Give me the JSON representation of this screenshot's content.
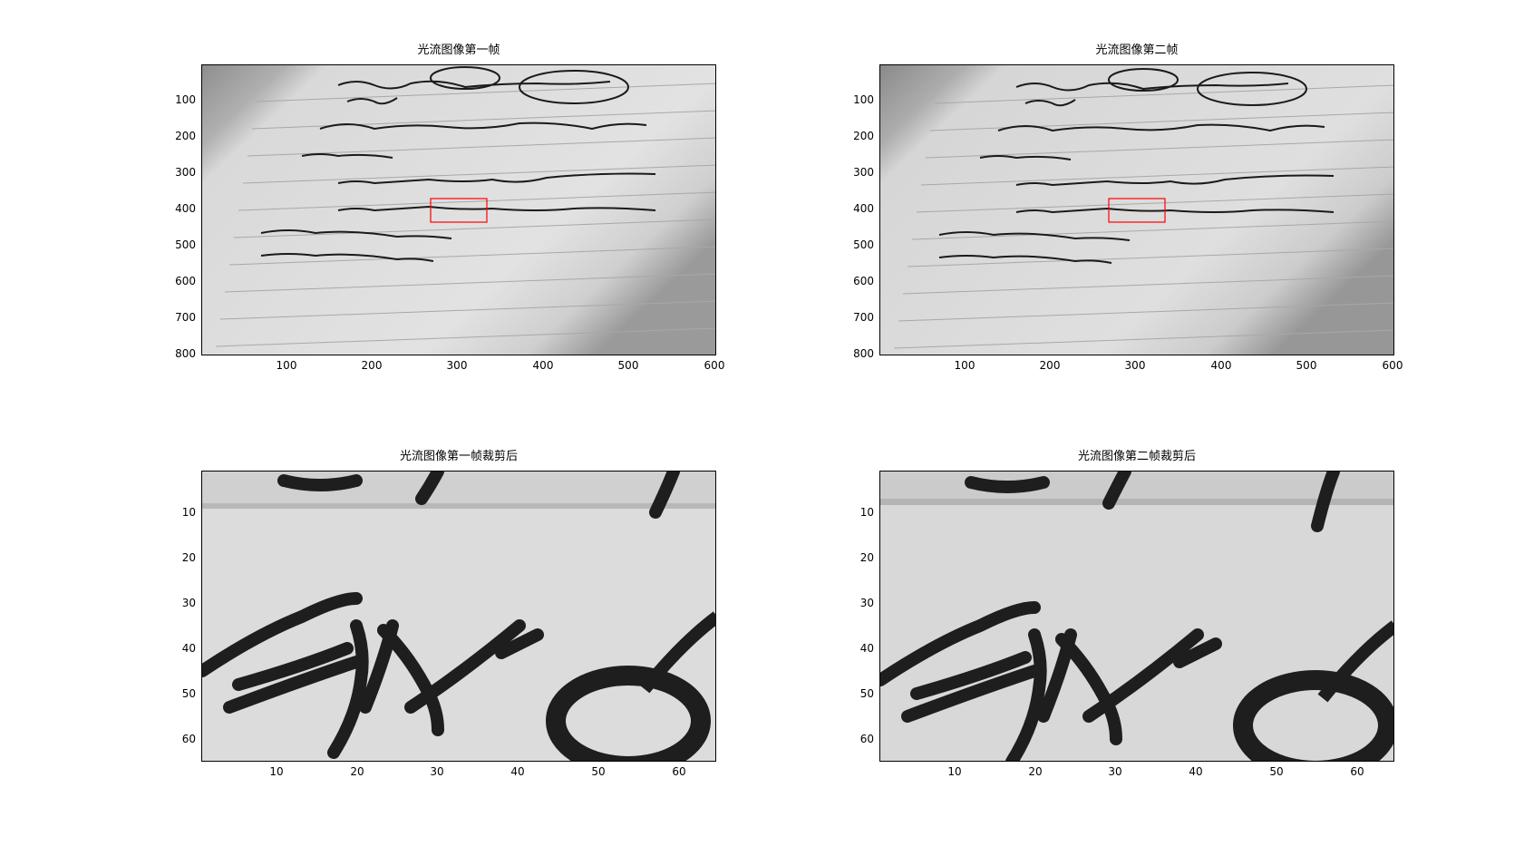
{
  "figure": {
    "panels": [
      {
        "title": "光流图像第一帧",
        "kind": "full",
        "y_ticks": [
          "100",
          "200",
          "300",
          "400",
          "500",
          "600",
          "700",
          "800"
        ],
        "x_ticks": [
          "100",
          "200",
          "300",
          "400",
          "500",
          "600"
        ],
        "roi": {
          "x": [
            267,
            331
          ],
          "y": [
            370,
            434
          ]
        }
      },
      {
        "title": "光流图像第二帧",
        "kind": "full",
        "y_ticks": [
          "100",
          "200",
          "300",
          "400",
          "500",
          "600",
          "700",
          "800"
        ],
        "x_ticks": [
          "100",
          "200",
          "300",
          "400",
          "500",
          "600"
        ],
        "roi": {
          "x": [
            267,
            331
          ],
          "y": [
            370,
            434
          ]
        }
      },
      {
        "title": "光流图像第一帧裁剪后",
        "kind": "crop",
        "y_ticks": [
          "10",
          "20",
          "30",
          "40",
          "50",
          "60"
        ],
        "x_ticks": [
          "10",
          "20",
          "30",
          "40",
          "50",
          "60"
        ]
      },
      {
        "title": "光流图像第二帧裁剪后",
        "kind": "crop",
        "y_ticks": [
          "10",
          "20",
          "30",
          "40",
          "50",
          "60"
        ],
        "x_ticks": [
          "10",
          "20",
          "30",
          "40",
          "50",
          "60"
        ]
      }
    ],
    "colors": {
      "roi_box": "#ff0000",
      "paper": "#d8d8d8",
      "ink": "#1a1a1a"
    }
  }
}
